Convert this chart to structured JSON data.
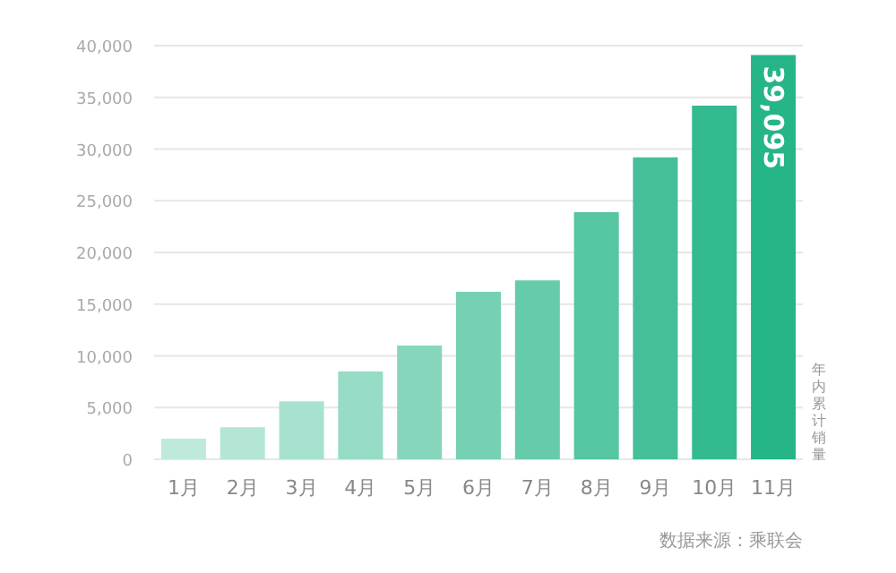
{
  "chart_data": {
    "type": "bar",
    "categories": [
      "1月",
      "2月",
      "3月",
      "4月",
      "5月",
      "6月",
      "7月",
      "8月",
      "9月",
      "10月",
      "11月"
    ],
    "values": [
      2000,
      3100,
      5600,
      8500,
      11000,
      16200,
      17300,
      23900,
      29200,
      34200,
      39095
    ],
    "colors": [
      "#bfeadb",
      "#b3e6d5",
      "#a6e2cf",
      "#96dcc6",
      "#86d6bd",
      "#76d0b4",
      "#66cbab",
      "#55c5a2",
      "#44bf99",
      "#34ba91",
      "#25b589"
    ],
    "value_labels": [
      null,
      null,
      null,
      null,
      null,
      null,
      null,
      null,
      null,
      null,
      "39,095"
    ],
    "ylabel": "年内累计销量",
    "ylim": [
      0,
      40000
    ],
    "yticks": [
      {
        "value": 0,
        "label": "0"
      },
      {
        "value": 5000,
        "label": "5,000"
      },
      {
        "value": 10000,
        "label": "10,000"
      },
      {
        "value": 15000,
        "label": "15,000"
      },
      {
        "value": 20000,
        "label": "20,000"
      },
      {
        "value": 25000,
        "label": "25,000"
      },
      {
        "value": 30000,
        "label": "30,000"
      },
      {
        "value": 35000,
        "label": "35,000"
      },
      {
        "value": 40000,
        "label": "40,000"
      }
    ],
    "grid": "y",
    "annotations": [
      "数据来源：乘联会"
    ]
  }
}
